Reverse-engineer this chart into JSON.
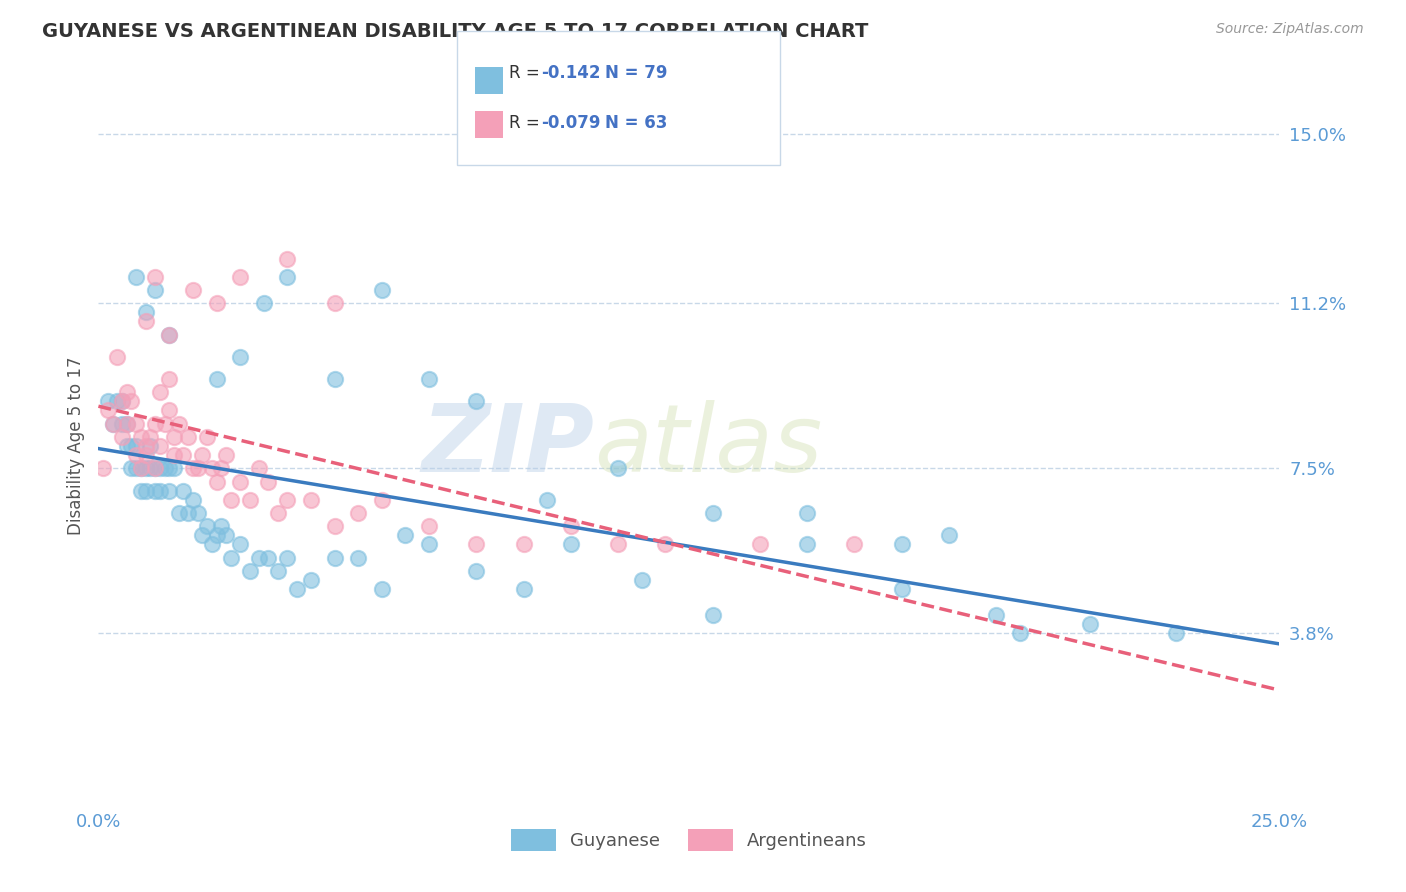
{
  "title": "GUYANESE VS ARGENTINEAN DISABILITY AGE 5 TO 17 CORRELATION CHART",
  "source": "Source: ZipAtlas.com",
  "ylabel": "Disability Age 5 to 17",
  "xlim": [
    0.0,
    0.25
  ],
  "ylim": [
    0.0,
    0.16
  ],
  "yticks": [
    0.038,
    0.075,
    0.112,
    0.15
  ],
  "ytick_labels": [
    "3.8%",
    "7.5%",
    "11.2%",
    "15.0%"
  ],
  "xticks": [
    0.0,
    0.05,
    0.1,
    0.15,
    0.2,
    0.25
  ],
  "xtick_labels": [
    "0.0%",
    "",
    "",
    "",
    "",
    "25.0%"
  ],
  "guyanese_color": "#7fbfdf",
  "argentinean_color": "#f4a0b8",
  "guyanese_line_color": "#3a7bbf",
  "argentinean_line_color": "#e8607a",
  "watermark_zip": "ZIP",
  "watermark_atlas": "atlas",
  "title_color": "#333333",
  "tick_color": "#5b9bd5",
  "grid_color": "#c8d8e8",
  "bg_color": "#ffffff",
  "guyanese_x": [
    0.002,
    0.003,
    0.004,
    0.005,
    0.005,
    0.006,
    0.006,
    0.007,
    0.007,
    0.008,
    0.008,
    0.009,
    0.009,
    0.01,
    0.01,
    0.011,
    0.011,
    0.012,
    0.012,
    0.013,
    0.013,
    0.014,
    0.015,
    0.015,
    0.016,
    0.017,
    0.018,
    0.019,
    0.02,
    0.021,
    0.022,
    0.023,
    0.024,
    0.025,
    0.026,
    0.027,
    0.028,
    0.03,
    0.032,
    0.034,
    0.036,
    0.038,
    0.04,
    0.042,
    0.045,
    0.05,
    0.055,
    0.06,
    0.065,
    0.07,
    0.08,
    0.09,
    0.1,
    0.115,
    0.13,
    0.15,
    0.17,
    0.19,
    0.21,
    0.228,
    0.17,
    0.195,
    0.008,
    0.01,
    0.012,
    0.015,
    0.025,
    0.03,
    0.035,
    0.04,
    0.05,
    0.06,
    0.07,
    0.08,
    0.095,
    0.11,
    0.13,
    0.15,
    0.18
  ],
  "guyanese_y": [
    0.09,
    0.085,
    0.09,
    0.09,
    0.085,
    0.085,
    0.08,
    0.08,
    0.075,
    0.08,
    0.075,
    0.075,
    0.07,
    0.07,
    0.075,
    0.075,
    0.08,
    0.07,
    0.075,
    0.075,
    0.07,
    0.075,
    0.075,
    0.07,
    0.075,
    0.065,
    0.07,
    0.065,
    0.068,
    0.065,
    0.06,
    0.062,
    0.058,
    0.06,
    0.062,
    0.06,
    0.055,
    0.058,
    0.052,
    0.055,
    0.055,
    0.052,
    0.055,
    0.048,
    0.05,
    0.055,
    0.055,
    0.048,
    0.06,
    0.058,
    0.052,
    0.048,
    0.058,
    0.05,
    0.042,
    0.058,
    0.048,
    0.042,
    0.04,
    0.038,
    0.058,
    0.038,
    0.118,
    0.11,
    0.115,
    0.105,
    0.095,
    0.1,
    0.112,
    0.118,
    0.095,
    0.115,
    0.095,
    0.09,
    0.068,
    0.075,
    0.065,
    0.065,
    0.06
  ],
  "argentinean_x": [
    0.001,
    0.002,
    0.003,
    0.004,
    0.005,
    0.005,
    0.006,
    0.006,
    0.007,
    0.008,
    0.008,
    0.009,
    0.009,
    0.01,
    0.01,
    0.011,
    0.012,
    0.012,
    0.013,
    0.013,
    0.014,
    0.015,
    0.015,
    0.016,
    0.016,
    0.017,
    0.018,
    0.019,
    0.02,
    0.021,
    0.022,
    0.023,
    0.024,
    0.025,
    0.026,
    0.027,
    0.028,
    0.03,
    0.032,
    0.034,
    0.036,
    0.038,
    0.04,
    0.045,
    0.05,
    0.055,
    0.06,
    0.07,
    0.08,
    0.09,
    0.1,
    0.11,
    0.12,
    0.14,
    0.16,
    0.01,
    0.012,
    0.015,
    0.02,
    0.025,
    0.03,
    0.04,
    0.05
  ],
  "argentinean_y": [
    0.075,
    0.088,
    0.085,
    0.1,
    0.09,
    0.082,
    0.092,
    0.085,
    0.09,
    0.085,
    0.078,
    0.082,
    0.075,
    0.078,
    0.08,
    0.082,
    0.075,
    0.085,
    0.08,
    0.092,
    0.085,
    0.095,
    0.088,
    0.082,
    0.078,
    0.085,
    0.078,
    0.082,
    0.075,
    0.075,
    0.078,
    0.082,
    0.075,
    0.072,
    0.075,
    0.078,
    0.068,
    0.072,
    0.068,
    0.075,
    0.072,
    0.065,
    0.068,
    0.068,
    0.062,
    0.065,
    0.068,
    0.062,
    0.058,
    0.058,
    0.062,
    0.058,
    0.058,
    0.058,
    0.058,
    0.108,
    0.118,
    0.105,
    0.115,
    0.112,
    0.118,
    0.122,
    0.112
  ]
}
